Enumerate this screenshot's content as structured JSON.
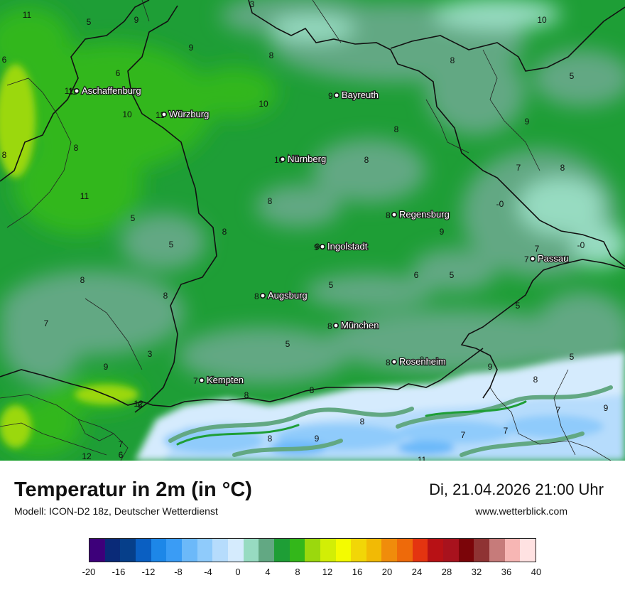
{
  "title": "Temperatur in 2m (in °C)",
  "model": "Modell: ICON-D2 18z, Deutscher Wetterdienst",
  "datetime": "Di, 21.04.2026 21:00 Uhr",
  "website": "www.wetterblick.com",
  "cities": [
    {
      "name": "Aschaffenburg",
      "value": "11"
    },
    {
      "name": "Würzburg",
      "value": "11"
    },
    {
      "name": "Bayreuth",
      "value": "9"
    },
    {
      "name": "Nürnberg",
      "value": "10"
    },
    {
      "name": "Regensburg",
      "value": "8"
    },
    {
      "name": "Ingolstadt",
      "value": "9"
    },
    {
      "name": "Passau",
      "value": "7"
    },
    {
      "name": "Augsburg",
      "value": "8"
    },
    {
      "name": "München",
      "value": "8"
    },
    {
      "name": "Rosenheim",
      "value": "8"
    },
    {
      "name": "Kempten",
      "value": "7"
    }
  ],
  "grid_values": [
    "11",
    "5",
    "9",
    "3",
    "10",
    "6",
    "9",
    "8",
    "8",
    "5",
    "6",
    "11",
    "10",
    "10",
    "8",
    "9",
    "8",
    "8",
    "7",
    "8",
    "8",
    "-0",
    "11",
    "5",
    "8",
    "8",
    "9",
    "5",
    "9",
    "-0",
    "7",
    "5",
    "6",
    "5",
    "8",
    "8",
    "5",
    "7",
    "3",
    "9",
    "5",
    "5",
    "8",
    "9",
    "8",
    "8",
    "8",
    "6",
    "7",
    "9",
    "12",
    "7",
    "12",
    "8",
    "9",
    "8",
    "7",
    "7",
    "6",
    "11"
  ],
  "legend": {
    "colors": [
      "#3d007a",
      "#0a2a78",
      "#063f8a",
      "#0a5fc2",
      "#1d87e8",
      "#3a9cf5",
      "#6cb9f9",
      "#8fcbfb",
      "#b6dcfc",
      "#d5ebfd",
      "#97dbc1",
      "#62a883",
      "#1e9e36",
      "#33b71a",
      "#9bd80d",
      "#d2ee06",
      "#f4fb00",
      "#f2d607",
      "#f2ba05",
      "#f08c0b",
      "#ee6a0a",
      "#e43410",
      "#b81115",
      "#a8121d",
      "#7b0509",
      "#8f3333",
      "#c67b7a",
      "#f7b6b4",
      "#ffe2e2"
    ],
    "ticks": [
      "-20",
      "-16",
      "-12",
      "-8",
      "-4",
      "0",
      "4",
      "8",
      "12",
      "16",
      "20",
      "24",
      "28",
      "32",
      "36",
      "40"
    ],
    "min": -20,
    "max": 40
  }
}
